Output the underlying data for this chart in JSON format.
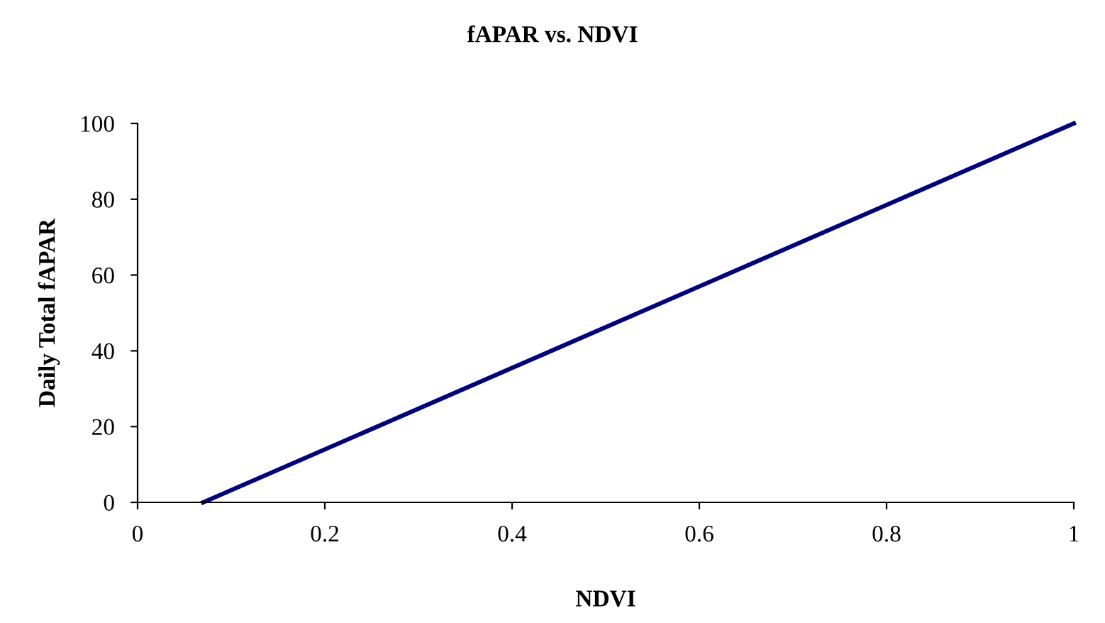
{
  "chart_data": {
    "type": "line",
    "title": "fAPAR vs. NDVI",
    "xlabel": "NDVI",
    "ylabel": "Daily Total fAPAR",
    "series": [
      {
        "color": "#000080",
        "x": [
          0.07,
          1.0
        ],
        "values": [
          0,
          100
        ]
      }
    ],
    "xlim": [
      0,
      1
    ],
    "xticks": [
      0,
      0.2,
      0.4,
      0.6,
      0.8,
      1
    ],
    "ylim": [
      0,
      100
    ],
    "yticks": [
      0,
      20,
      40,
      60,
      80,
      100
    ],
    "grid": false,
    "legend": false,
    "marker": "none",
    "line_style": "solid"
  }
}
